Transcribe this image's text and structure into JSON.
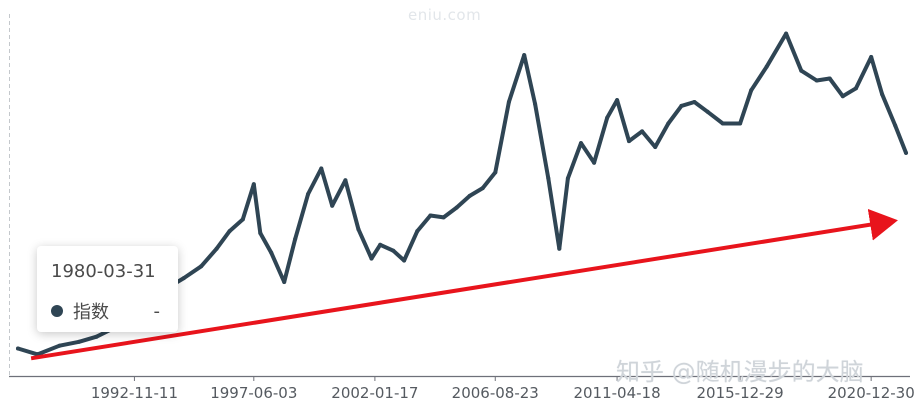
{
  "watermark": "eniu.com",
  "zhihu_watermark": "知乎 @随机漫步的大脑",
  "tooltip": {
    "date": "1980-03-31",
    "series_name": "指数",
    "value": "-"
  },
  "colors": {
    "series": "#2f4554",
    "trend_arrow": "#e8141c",
    "axis": "#6e7079"
  },
  "chart_data": {
    "type": "line",
    "x_tick_labels": [
      "1992-11-11",
      "1997-06-03",
      "2002-01-17",
      "2006-08-23",
      "2011-04-18",
      "2015-12-29",
      "2020-12-30"
    ],
    "x_range": [
      "1988-06-01",
      "2022-04-30"
    ],
    "y_axis_labels_visible": false,
    "grid": false,
    "series": [
      {
        "name": "指数",
        "points": [
          [
            "1988-06-01",
            0.55
          ],
          [
            "1989-03-01",
            0.4
          ],
          [
            "1990-01-01",
            0.62
          ],
          [
            "1990-10-01",
            0.72
          ],
          [
            "1991-06-01",
            0.85
          ],
          [
            "1992-03-01",
            1.1
          ],
          [
            "1992-11-11",
            1.75
          ],
          [
            "1993-04-01",
            1.3
          ],
          [
            "1994-01-01",
            2.05
          ],
          [
            "1994-10-01",
            2.35
          ],
          [
            "1995-06-01",
            2.65
          ],
          [
            "1996-01-01",
            3.1
          ],
          [
            "1996-07-01",
            3.55
          ],
          [
            "1997-01-01",
            3.85
          ],
          [
            "1997-06-03",
            4.75
          ],
          [
            "1997-09-01",
            3.5
          ],
          [
            "1998-02-01",
            3.0
          ],
          [
            "1998-08-01",
            2.25
          ],
          [
            "1999-01-01",
            3.35
          ],
          [
            "1999-07-01",
            4.5
          ],
          [
            "2000-01-01",
            5.15
          ],
          [
            "2000-06-01",
            4.2
          ],
          [
            "2000-12-01",
            4.85
          ],
          [
            "2001-06-01",
            3.6
          ],
          [
            "2001-12-01",
            2.85
          ],
          [
            "2002-04-01",
            3.2
          ],
          [
            "2002-10-01",
            3.05
          ],
          [
            "2003-03-01",
            2.8
          ],
          [
            "2003-09-01",
            3.55
          ],
          [
            "2004-03-01",
            3.95
          ],
          [
            "2004-09-01",
            3.9
          ],
          [
            "2005-03-01",
            4.15
          ],
          [
            "2005-09-01",
            4.45
          ],
          [
            "2006-03-01",
            4.65
          ],
          [
            "2006-08-23",
            5.05
          ],
          [
            "2007-03-01",
            6.85
          ],
          [
            "2007-10-01",
            8.05
          ],
          [
            "2008-03-01",
            6.8
          ],
          [
            "2008-09-01",
            4.9
          ],
          [
            "2009-02-01",
            3.1
          ],
          [
            "2009-06-01",
            4.9
          ],
          [
            "2009-12-01",
            5.8
          ],
          [
            "2010-06-01",
            5.3
          ],
          [
            "2010-12-01",
            6.45
          ],
          [
            "2011-04-18",
            6.9
          ],
          [
            "2011-10-01",
            5.85
          ],
          [
            "2012-04-01",
            6.1
          ],
          [
            "2012-10-01",
            5.7
          ],
          [
            "2013-04-01",
            6.3
          ],
          [
            "2013-10-01",
            6.75
          ],
          [
            "2014-04-01",
            6.85
          ],
          [
            "2014-10-01",
            6.6
          ],
          [
            "2015-05-01",
            6.3
          ],
          [
            "2015-12-29",
            6.3
          ],
          [
            "2016-06-01",
            7.15
          ],
          [
            "2017-01-01",
            7.75
          ],
          [
            "2017-10-01",
            8.6
          ],
          [
            "2018-05-01",
            7.65
          ],
          [
            "2018-12-01",
            7.4
          ],
          [
            "2019-06-01",
            7.45
          ],
          [
            "2019-12-01",
            7.0
          ],
          [
            "2020-06-01",
            7.2
          ],
          [
            "2020-12-30",
            8.0
          ],
          [
            "2021-06-01",
            7.05
          ],
          [
            "2021-12-01",
            6.25
          ],
          [
            "2022-04-30",
            5.55
          ]
        ]
      }
    ],
    "trend_arrow": {
      "from": [
        "1988-12-01",
        0.3
      ],
      "to": [
        "2022-04-30",
        3.85
      ]
    },
    "y_range": [
      0,
      9.1
    ]
  }
}
